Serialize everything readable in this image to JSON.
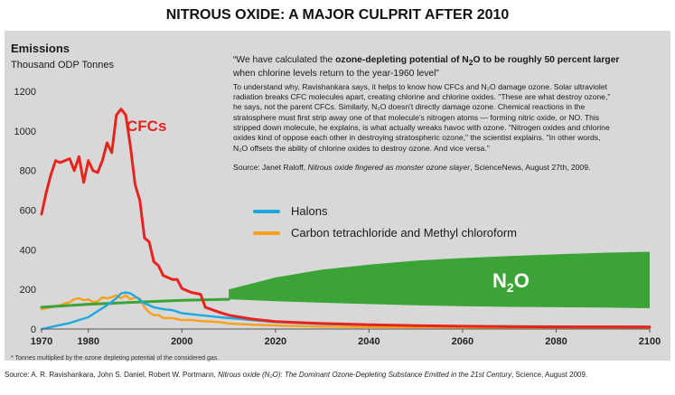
{
  "title": "NITROUS OXIDE: A MAJOR CULPRIT AFTER 2010",
  "emissions_label": "Emissions",
  "units_label": "Thousand ODP Tonnes",
  "quote": {
    "pre": "“We have calculated the ",
    "bold1": "ozone-depleting potential of N",
    "sub": "2",
    "bold2": "O to be roughly 50 percent larger",
    "post": "when chlorine levels return to the year-1960 level”",
    "body": [
      "To understand why, Ravishankara says, it helps to know how CFCs and N₂O damage ozone. Solar ultraviolet",
      "radiation breaks CFC molecules apart, creating chlorine and chlorine oxides. \"These are what destroy ozone,\"",
      "he says, not the parent CFCs. Similarly, N₂O doesn't directly damage ozone. Chemical reactions in the",
      "stratosphere must first strip away one of that molecule's nitrogen atoms — forming nitric oxide, or NO. This",
      "stripped down molecule, he explains, is what actually wreaks havoc with ozone. \"Nitrogen oxides and chlorine",
      "oxides kind of oppose each other in destroying stratospheric ozone,\" the scientist explains. \"In other words,",
      "N₂O offsets the ability of chlorine oxides to destroy ozone. And vice versa.\""
    ],
    "source_pre": "Source: Janet Raloff, ",
    "source_italic": "Nitrous oxide fingered as monster ozone slayer",
    "source_post": ", ScienceNews, August 27th, 2009."
  },
  "legend": {
    "halons": "Halons",
    "carbon": "Carbon tetrachloride and Methyl chloroform"
  },
  "footnote": "* Tonnes multiplied by the ozone depleting potential of the considered gas.",
  "bottom_source": {
    "pre": "Source: A. R. Ravishankara, John S. Daniel, Robert W. Portmann, ",
    "italic": "Nitrous oxide (N₂O): The Dominant Ozone-Depleting Substance Emitted in the 21st Century",
    "post": ", Science, August 2009."
  },
  "colors": {
    "cfcs": "#e8231e",
    "halons": "#1ea8e0",
    "carbon": "#f7a11a",
    "n2o": "#3ca337",
    "panel": "#d8d8d8"
  },
  "chart_data": {
    "type": "line",
    "title": "NITROUS OXIDE: A MAJOR CULPRIT AFTER 2010",
    "ylabel": "Emissions Thousand ODP Tonnes",
    "xlim": [
      1970,
      2100
    ],
    "ylim": [
      0,
      1200
    ],
    "xticks": [
      1970,
      1980,
      2000,
      2020,
      2040,
      2060,
      2080,
      2100
    ],
    "yticks": [
      0,
      200,
      400,
      600,
      800,
      1000,
      1200
    ],
    "series": [
      {
        "name": "CFCs",
        "color": "#e8231e",
        "x": [
          1970,
          1971,
          1972,
          1973,
          1974,
          1975,
          1976,
          1977,
          1978,
          1979,
          1980,
          1981,
          1982,
          1983,
          1984,
          1985,
          1986,
          1987,
          1988,
          1989,
          1990,
          1991,
          1992,
          1993,
          1994,
          1995,
          1996,
          1997,
          1998,
          1999,
          2000,
          2002,
          2004,
          2005,
          2008,
          2010,
          2015,
          2020,
          2030,
          2040,
          2050,
          2060,
          2070,
          2080,
          2090,
          2100
        ],
        "y": [
          580,
          690,
          780,
          850,
          840,
          850,
          860,
          800,
          870,
          740,
          850,
          800,
          790,
          850,
          940,
          890,
          1080,
          1110,
          1080,
          920,
          730,
          650,
          460,
          440,
          340,
          320,
          270,
          260,
          250,
          250,
          205,
          185,
          175,
          110,
          85,
          70,
          50,
          38,
          28,
          22,
          17,
          14,
          12,
          11,
          11,
          10
        ]
      },
      {
        "name": "Halons",
        "color": "#1ea8e0",
        "x": [
          1970,
          1972,
          1974,
          1976,
          1978,
          1980,
          1982,
          1984,
          1986,
          1987,
          1988,
          1989,
          1990,
          1992,
          1994,
          1996,
          1998,
          2000,
          2003,
          2006,
          2010,
          2015,
          2020,
          2030,
          2040,
          2050,
          2060,
          2070,
          2080,
          2090,
          2100
        ],
        "y": [
          0,
          10,
          20,
          30,
          45,
          60,
          90,
          120,
          155,
          180,
          185,
          180,
          165,
          130,
          110,
          100,
          95,
          80,
          72,
          65,
          55,
          45,
          35,
          25,
          20,
          17,
          15,
          14,
          13,
          12,
          12
        ]
      },
      {
        "name": "Carbon tetrachloride and Methyl chloroform",
        "color": "#f7a11a",
        "x": [
          1970,
          1972,
          1974,
          1975,
          1976,
          1977,
          1978,
          1979,
          1980,
          1981,
          1982,
          1983,
          1984,
          1985,
          1986,
          1987,
          1988,
          1989,
          1990,
          1991,
          1992,
          1993,
          1994,
          1995,
          1996,
          1998,
          2000,
          2002,
          2004,
          2006,
          2008,
          2010,
          2015,
          2020,
          2030,
          2040,
          2060,
          2080,
          2100
        ],
        "y": [
          100,
          110,
          120,
          130,
          135,
          150,
          155,
          145,
          150,
          135,
          140,
          160,
          155,
          160,
          170,
          155,
          170,
          150,
          160,
          155,
          110,
          85,
          70,
          70,
          55,
          55,
          45,
          45,
          40,
          38,
          35,
          28,
          22,
          18,
          12,
          10,
          8,
          6,
          5
        ]
      },
      {
        "name": "N₂O",
        "color": "#3ca337",
        "x": [
          1970,
          1980,
          1990,
          2000,
          2010
        ],
        "y": [
          110,
          125,
          135,
          145,
          150
        ]
      }
    ],
    "n2o_band": {
      "label": "N₂O",
      "x": [
        2010,
        2020,
        2030,
        2040,
        2050,
        2060,
        2070,
        2080,
        2090,
        2100
      ],
      "upper": [
        200,
        260,
        300,
        325,
        345,
        358,
        368,
        377,
        385,
        390
      ],
      "lower": [
        150,
        140,
        133,
        126,
        120,
        115,
        112,
        110,
        108,
        105
      ]
    },
    "labels": {
      "cfcs": "CFCs",
      "n2o_main": "N",
      "n2o_sub": "2",
      "n2o_tail": "O"
    }
  }
}
